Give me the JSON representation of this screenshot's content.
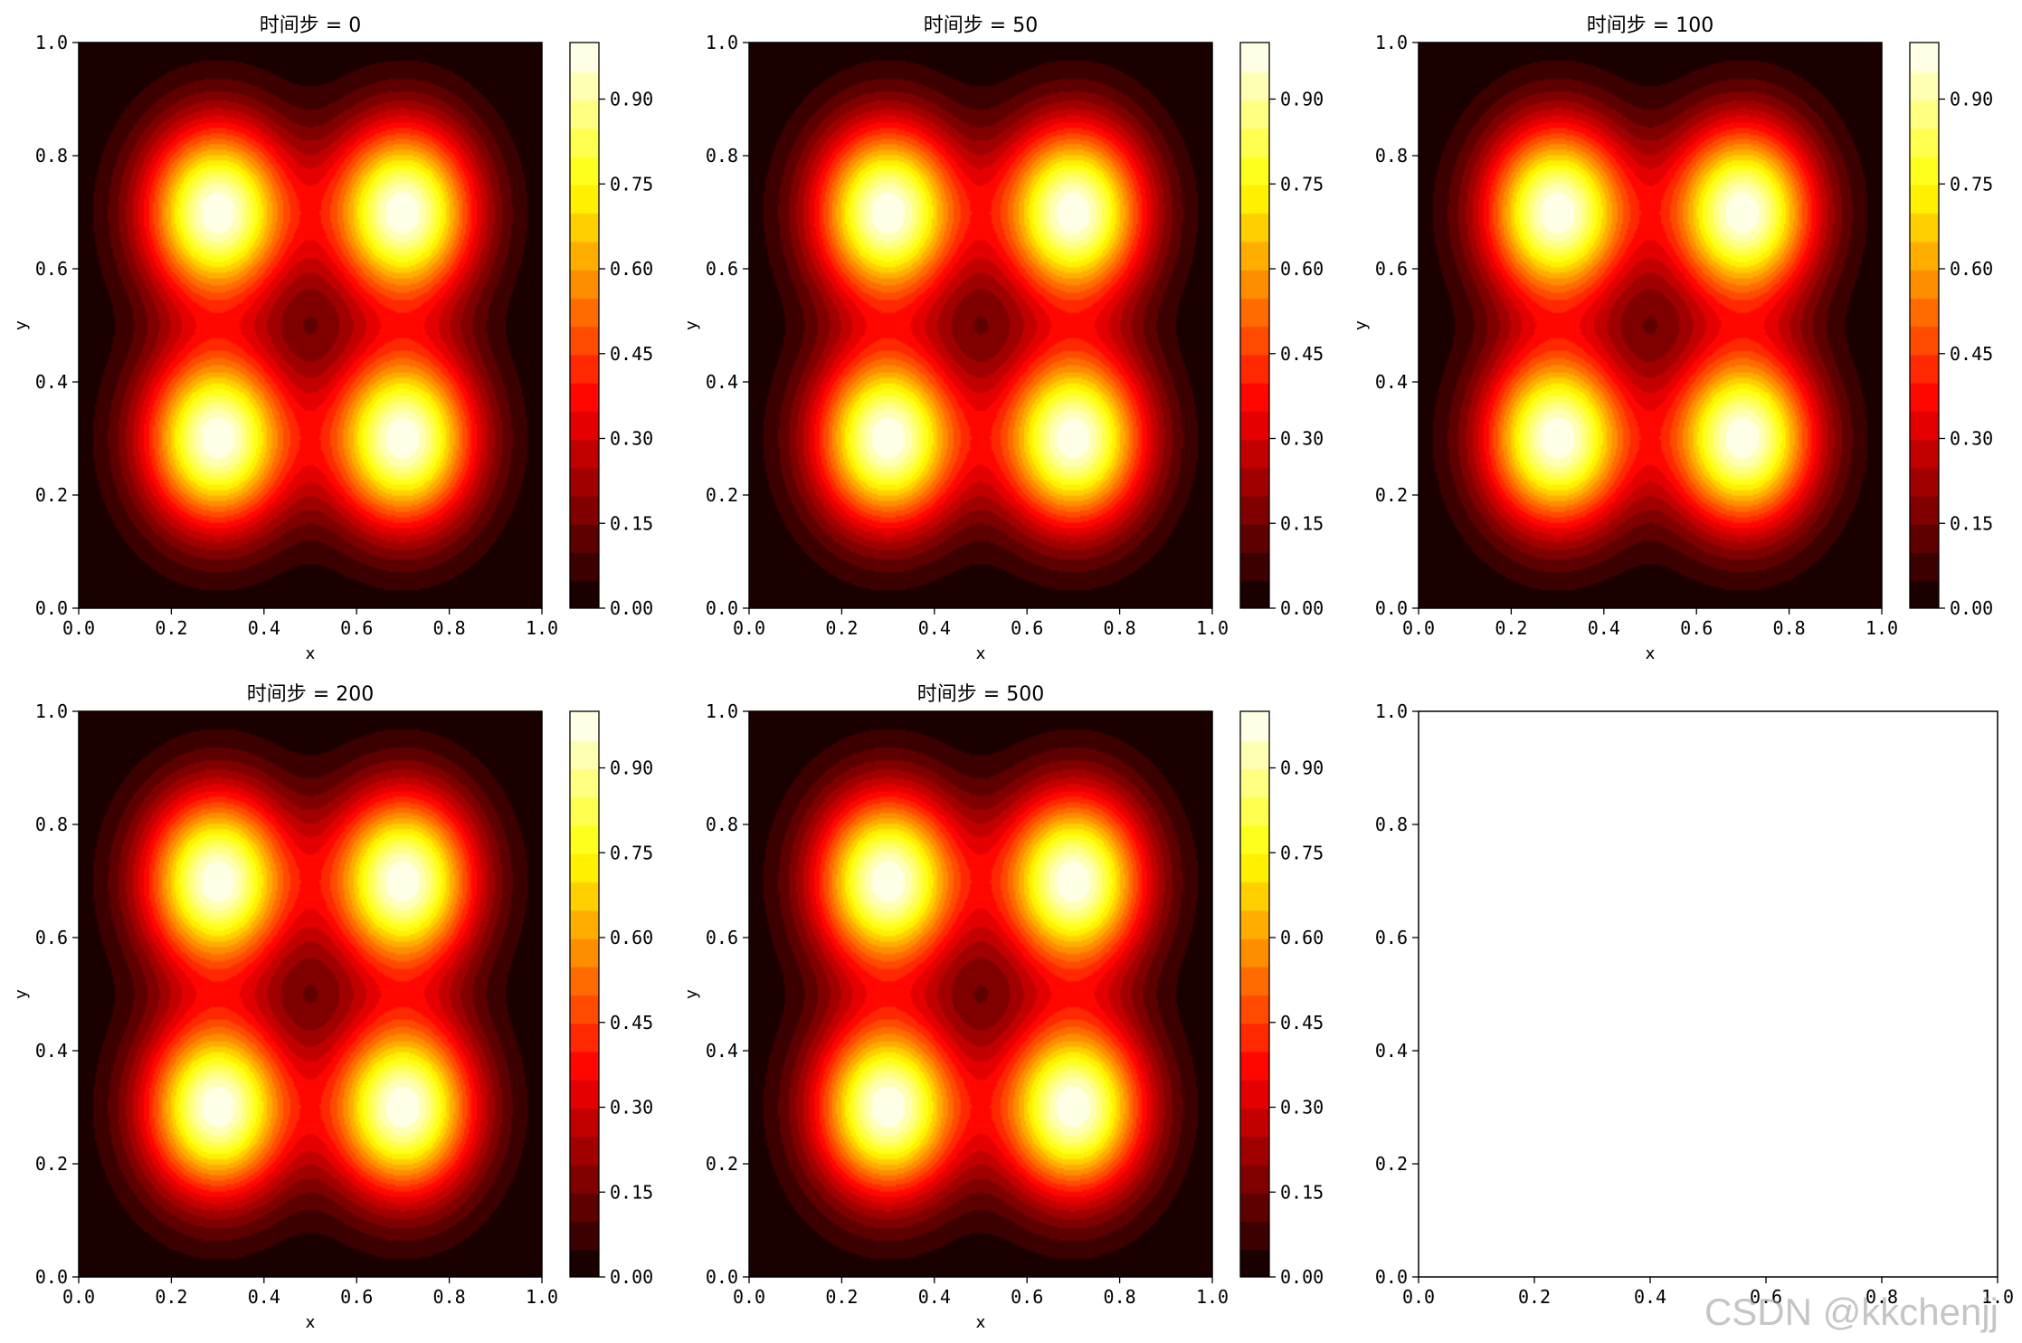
{
  "figure": {
    "watermark": "CSDN @kkchenjj"
  },
  "colors": {
    "colormap": "hot",
    "axis_frame": "#000000",
    "background": "#ffffff"
  },
  "colorbar": {
    "ticks": [
      "0.00",
      "0.15",
      "0.30",
      "0.45",
      "0.60",
      "0.75",
      "0.90"
    ]
  },
  "chart_data": [
    {
      "type": "heatmap",
      "title": "时间步 = 0",
      "xlabel": "x",
      "ylabel": "y",
      "xlim": [
        0,
        1
      ],
      "ylim": [
        0,
        1
      ],
      "xticks": [
        "0.0",
        "0.2",
        "0.4",
        "0.6",
        "0.8",
        "1.0"
      ],
      "yticks": [
        "0.0",
        "0.2",
        "0.4",
        "0.6",
        "0.8",
        "1.0"
      ],
      "levels": 20,
      "vmin": 0.0,
      "vmax": 1.0,
      "peaks": [
        [
          0.3,
          0.3
        ],
        [
          0.7,
          0.3
        ],
        [
          0.3,
          0.7
        ],
        [
          0.7,
          0.7
        ]
      ],
      "peak_value": 1.0,
      "colorbar": true
    },
    {
      "type": "heatmap",
      "title": "时间步 = 50",
      "xlabel": "x",
      "ylabel": "y",
      "xlim": [
        0,
        1
      ],
      "ylim": [
        0,
        1
      ],
      "xticks": [
        "0.0",
        "0.2",
        "0.4",
        "0.6",
        "0.8",
        "1.0"
      ],
      "yticks": [
        "0.0",
        "0.2",
        "0.4",
        "0.6",
        "0.8",
        "1.0"
      ],
      "levels": 20,
      "vmin": 0.0,
      "vmax": 1.0,
      "peaks": [
        [
          0.3,
          0.3
        ],
        [
          0.7,
          0.3
        ],
        [
          0.3,
          0.7
        ],
        [
          0.7,
          0.7
        ]
      ],
      "peak_value": 1.0,
      "colorbar": true
    },
    {
      "type": "heatmap",
      "title": "时间步 = 100",
      "xlabel": "x",
      "ylabel": "y",
      "xlim": [
        0,
        1
      ],
      "ylim": [
        0,
        1
      ],
      "xticks": [
        "0.0",
        "0.2",
        "0.4",
        "0.6",
        "0.8",
        "1.0"
      ],
      "yticks": [
        "0.0",
        "0.2",
        "0.4",
        "0.6",
        "0.8",
        "1.0"
      ],
      "levels": 20,
      "vmin": 0.0,
      "vmax": 1.0,
      "peaks": [
        [
          0.3,
          0.3
        ],
        [
          0.7,
          0.3
        ],
        [
          0.3,
          0.7
        ],
        [
          0.7,
          0.7
        ]
      ],
      "peak_value": 1.0,
      "colorbar": true
    },
    {
      "type": "heatmap",
      "title": "时间步 = 200",
      "xlabel": "x",
      "ylabel": "y",
      "xlim": [
        0,
        1
      ],
      "ylim": [
        0,
        1
      ],
      "xticks": [
        "0.0",
        "0.2",
        "0.4",
        "0.6",
        "0.8",
        "1.0"
      ],
      "yticks": [
        "0.0",
        "0.2",
        "0.4",
        "0.6",
        "0.8",
        "1.0"
      ],
      "levels": 20,
      "vmin": 0.0,
      "vmax": 1.0,
      "peaks": [
        [
          0.3,
          0.3
        ],
        [
          0.7,
          0.3
        ],
        [
          0.3,
          0.7
        ],
        [
          0.7,
          0.7
        ]
      ],
      "peak_value": 1.0,
      "colorbar": true
    },
    {
      "type": "heatmap",
      "title": "时间步 = 500",
      "xlabel": "x",
      "ylabel": "y",
      "xlim": [
        0,
        1
      ],
      "ylim": [
        0,
        1
      ],
      "xticks": [
        "0.0",
        "0.2",
        "0.4",
        "0.6",
        "0.8",
        "1.0"
      ],
      "yticks": [
        "0.0",
        "0.2",
        "0.4",
        "0.6",
        "0.8",
        "1.0"
      ],
      "levels": 20,
      "vmin": 0.0,
      "vmax": 1.0,
      "peaks": [
        [
          0.3,
          0.3
        ],
        [
          0.7,
          0.3
        ],
        [
          0.3,
          0.7
        ],
        [
          0.7,
          0.7
        ]
      ],
      "peak_value": 1.0,
      "colorbar": true
    },
    {
      "type": "heatmap",
      "title": "",
      "xlabel": "",
      "ylabel": "",
      "xlim": [
        0,
        1
      ],
      "ylim": [
        0,
        1
      ],
      "xticks": [
        "0.0",
        "0.2",
        "0.4",
        "0.6",
        "0.8",
        "1.0"
      ],
      "yticks": [
        "0.0",
        "0.2",
        "0.4",
        "0.6",
        "0.8",
        "1.0"
      ],
      "empty": true,
      "colorbar": false
    }
  ]
}
